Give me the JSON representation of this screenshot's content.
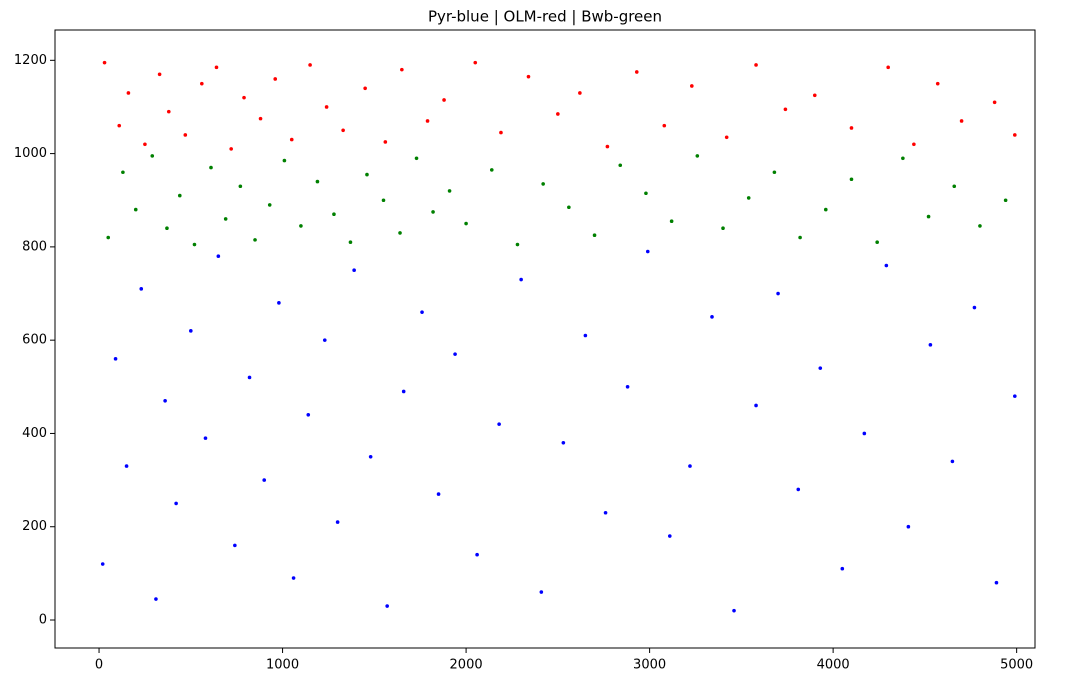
{
  "chart_data": {
    "type": "scatter",
    "title": "Pyr-blue | OLM-red | Bwb-green",
    "xlim": [
      -240,
      5100
    ],
    "ylim": [
      -60,
      1265
    ],
    "xticks": [
      0,
      1000,
      2000,
      3000,
      4000,
      5000
    ],
    "yticks": [
      0,
      200,
      400,
      600,
      800,
      1000,
      1200
    ],
    "grid": false,
    "series": [
      {
        "color": "#ff0000",
        "x": [
          30,
          110,
          160,
          250,
          330,
          380,
          470,
          560,
          640,
          720,
          790,
          880,
          960,
          1050,
          1150,
          1240,
          1330,
          1450,
          1560,
          1650,
          1790,
          1880,
          2050,
          2190,
          2340,
          2500,
          2620,
          2770,
          2930,
          3080,
          3230,
          3420,
          3580,
          3740,
          3900,
          4100,
          4300,
          4440,
          4570,
          4700,
          4880,
          4990
        ],
        "y": [
          1195,
          1060,
          1130,
          1020,
          1170,
          1090,
          1040,
          1150,
          1185,
          1010,
          1120,
          1075,
          1160,
          1030,
          1190,
          1100,
          1050,
          1140,
          1025,
          1180,
          1070,
          1115,
          1195,
          1045,
          1165,
          1085,
          1130,
          1015,
          1175,
          1060,
          1145,
          1035,
          1190,
          1095,
          1125,
          1055,
          1185,
          1020,
          1150,
          1070,
          1110,
          1040
        ]
      },
      {
        "color": "#008000",
        "x": [
          50,
          130,
          200,
          290,
          370,
          440,
          520,
          610,
          690,
          770,
          850,
          930,
          1010,
          1100,
          1190,
          1280,
          1370,
          1460,
          1550,
          1640,
          1730,
          1820,
          1910,
          2000,
          2140,
          2280,
          2420,
          2560,
          2700,
          2840,
          2980,
          3120,
          3260,
          3400,
          3540,
          3680,
          3820,
          3960,
          4100,
          4240,
          4380,
          4520,
          4660,
          4800,
          4940
        ],
        "y": [
          820,
          960,
          880,
          995,
          840,
          910,
          805,
          970,
          860,
          930,
          815,
          890,
          985,
          845,
          940,
          870,
          810,
          955,
          900,
          830,
          990,
          875,
          920,
          850,
          965,
          805,
          935,
          885,
          825,
          975,
          915,
          855,
          995,
          840,
          905,
          960,
          820,
          880,
          945,
          810,
          990,
          865,
          930,
          845,
          900
        ]
      },
      {
        "color": "#0000ff",
        "x": [
          20,
          90,
          150,
          230,
          310,
          360,
          420,
          500,
          580,
          650,
          740,
          820,
          900,
          980,
          1060,
          1140,
          1230,
          1300,
          1390,
          1480,
          1570,
          1660,
          1760,
          1850,
          1940,
          2060,
          2180,
          2300,
          2410,
          2530,
          2650,
          2760,
          2880,
          2990,
          3110,
          3220,
          3340,
          3460,
          3580,
          3700,
          3810,
          3930,
          4050,
          4170,
          4290,
          4410,
          4530,
          4650,
          4770,
          4890,
          4990
        ],
        "y": [
          120,
          560,
          330,
          710,
          45,
          470,
          250,
          620,
          390,
          780,
          160,
          520,
          300,
          680,
          90,
          440,
          600,
          210,
          750,
          350,
          30,
          490,
          660,
          270,
          570,
          140,
          420,
          730,
          60,
          380,
          610,
          230,
          500,
          790,
          180,
          330,
          650,
          20,
          460,
          700,
          280,
          540,
          110,
          400,
          760,
          200,
          590,
          340,
          670,
          80,
          480
        ]
      }
    ]
  }
}
